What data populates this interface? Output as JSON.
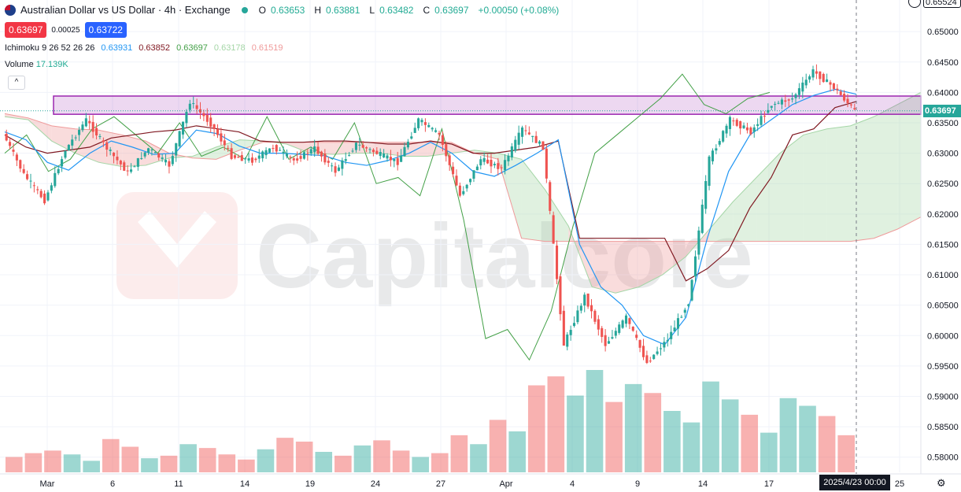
{
  "header": {
    "title": "Australian Dollar vs US Dollar · 4h · Exchange",
    "ohlc": [
      {
        "label": "O",
        "value": "0.63653"
      },
      {
        "label": "H",
        "value": "0.63881"
      },
      {
        "label": "L",
        "value": "0.63482"
      },
      {
        "label": "C",
        "value": "0.63697"
      }
    ],
    "change": "+0.00050 (+0.08%)"
  },
  "quote": {
    "sell": "0.63697",
    "spread": "0.00025",
    "buy": "0.63722"
  },
  "indicators": {
    "ichimoku": {
      "name": "Ichimoku 9 26 52 26 26",
      "values": [
        {
          "value": "0.63931",
          "color": "#2196f3"
        },
        {
          "value": "0.63852",
          "color": "#801922"
        },
        {
          "value": "0.63697",
          "color": "#43a047"
        },
        {
          "value": "0.63178",
          "color": "#a5d6a7"
        },
        {
          "value": "0.61519",
          "color": "#ef9a9a"
        }
      ]
    },
    "volume": {
      "name": "Volume",
      "value": "17.139K",
      "color": "#22ab94"
    }
  },
  "collapse_label": "^",
  "watermark": "Capitalcore",
  "price_axis": {
    "top_label": "0.65524",
    "current": "0.63697",
    "current_color": "#26a69a",
    "ticks": [
      "0.65000",
      "0.64500",
      "0.64000",
      "0.63500",
      "0.63000",
      "0.62500",
      "0.62000",
      "0.61500",
      "0.61000",
      "0.60500",
      "0.60000",
      "0.59500",
      "0.59000",
      "0.58500",
      "0.58000"
    ]
  },
  "time_axis": {
    "labels": [
      "Mar",
      "6",
      "11",
      "14",
      "19",
      "24",
      "27",
      "Apr",
      "4",
      "9",
      "14",
      "17",
      "25"
    ],
    "crosshair_label": "2025/4/23  00:00"
  },
  "chart_data": {
    "type": "candlestick",
    "symbol": "Australian Dollar vs US Dollar",
    "timeframe": "4h",
    "ylim": [
      0.5775,
      0.6552
    ],
    "resistance_zone": {
      "low": 0.6364,
      "high": 0.6394,
      "color": "#9c27b0"
    },
    "colors": {
      "up": "#26a69a",
      "down": "#ef5350",
      "tenkan": "#2196f3",
      "kijun": "#801922",
      "chikou": "#43a047",
      "cloud_up": "#a5d6a7",
      "cloud_down": "#ef9a9a"
    },
    "segments": [
      [
        0.6332,
        0.6265
      ],
      [
        0.6265,
        0.6222
      ],
      [
        0.6222,
        0.6305
      ],
      [
        0.6305,
        0.6355
      ],
      [
        0.6355,
        0.6308
      ],
      [
        0.6308,
        0.6268
      ],
      [
        0.6268,
        0.6308
      ],
      [
        0.6308,
        0.628
      ],
      [
        0.628,
        0.6385
      ],
      [
        0.6385,
        0.6348
      ],
      [
        0.6348,
        0.6295
      ],
      [
        0.6295,
        0.6288
      ],
      [
        0.6288,
        0.631
      ],
      [
        0.631,
        0.6288
      ],
      [
        0.6288,
        0.6308
      ],
      [
        0.6308,
        0.627
      ],
      [
        0.627,
        0.6315
      ],
      [
        0.6315,
        0.63
      ],
      [
        0.63,
        0.6285
      ],
      [
        0.6285,
        0.6355
      ],
      [
        0.6355,
        0.633
      ],
      [
        0.633,
        0.623
      ],
      [
        0.623,
        0.629
      ],
      [
        0.629,
        0.6275
      ],
      [
        0.6275,
        0.634
      ],
      [
        0.634,
        0.631
      ],
      [
        0.631,
        0.5985
      ],
      [
        0.5985,
        0.6065
      ],
      [
        0.6065,
        0.5985
      ],
      [
        0.5985,
        0.603
      ],
      [
        0.603,
        0.5955
      ],
      [
        0.5955,
        0.5995
      ],
      [
        0.5995,
        0.6055
      ],
      [
        0.6055,
        0.629
      ],
      [
        0.629,
        0.6355
      ],
      [
        0.6355,
        0.6335
      ],
      [
        0.6335,
        0.638
      ],
      [
        0.638,
        0.639
      ],
      [
        0.639,
        0.6435
      ],
      [
        0.6435,
        0.6408
      ],
      [
        0.6408,
        0.637
      ]
    ],
    "tenkan": [
      0.6335,
      0.6322,
      0.6285,
      0.6272,
      0.63,
      0.632,
      0.631,
      0.6298,
      0.63,
      0.6338,
      0.6332,
      0.6312,
      0.63,
      0.63,
      0.6298,
      0.6296,
      0.6285,
      0.628,
      0.6288,
      0.63,
      0.6318,
      0.63,
      0.627,
      0.6262,
      0.628,
      0.63,
      0.6322,
      0.615,
      0.608,
      0.605,
      0.6,
      0.5985,
      0.603,
      0.616,
      0.627,
      0.633,
      0.6355,
      0.638,
      0.6395,
      0.6405,
      0.6397
    ],
    "kijun": [
      0.633,
      0.631,
      0.63,
      0.6305,
      0.631,
      0.6325,
      0.633,
      0.6335,
      0.6338,
      0.6345,
      0.634,
      0.6335,
      0.632,
      0.6318,
      0.6318,
      0.632,
      0.632,
      0.6318,
      0.6315,
      0.6315,
      0.632,
      0.6315,
      0.63,
      0.63,
      0.6305,
      0.631,
      0.632,
      0.616,
      0.616,
      0.616,
      0.616,
      0.616,
      0.609,
      0.611,
      0.614,
      0.621,
      0.626,
      0.633,
      0.634,
      0.6375,
      0.6385
    ],
    "chikou": [
      0.63,
      0.633,
      0.627,
      0.629,
      0.634,
      0.636,
      0.633,
      0.63,
      0.635,
      0.6295,
      0.631,
      0.629,
      0.636,
      0.629,
      0.631,
      0.629,
      0.635,
      0.625,
      0.626,
      0.623,
      0.634,
      0.619,
      0.5995,
      0.601,
      0.596,
      0.604,
      0.618,
      0.63,
      0.633,
      0.636,
      0.639,
      0.643,
      0.638,
      0.6365,
      0.639,
      0.64
    ],
    "cloud": {
      "span_a": [
        0.636,
        0.6355,
        0.632,
        0.63,
        0.6285,
        0.6278,
        0.628,
        0.6292,
        0.6295,
        0.631,
        0.6322,
        0.632,
        0.6315,
        0.63,
        0.6298,
        0.63,
        0.63,
        0.6295,
        0.6295,
        0.63,
        0.6305,
        0.63,
        0.629,
        0.624,
        0.618,
        0.608,
        0.607,
        0.608,
        0.61,
        0.613,
        0.6175,
        0.622,
        0.626,
        0.63,
        0.633,
        0.634,
        0.6345,
        0.636,
        0.638,
        0.64
      ],
      "span_b": [
        0.6365,
        0.6358,
        0.6345,
        0.634,
        0.6338,
        0.633,
        0.632,
        0.63,
        0.6292,
        0.629,
        0.6305,
        0.6318,
        0.6318,
        0.6318,
        0.6318,
        0.6318,
        0.6318,
        0.6318,
        0.6318,
        0.6318,
        0.63,
        0.629,
        0.616,
        0.6155,
        0.6155,
        0.6155,
        0.6155,
        0.6155,
        0.6155,
        0.6155,
        0.6155,
        0.6155,
        0.6155,
        0.6155,
        0.6155,
        0.6155,
        0.6155,
        0.616,
        0.6175,
        0.6195
      ]
    },
    "volume_bars": [
      12,
      15,
      17,
      14,
      9,
      26,
      20,
      11,
      13,
      22,
      19,
      14,
      10,
      18,
      27,
      24,
      16,
      13,
      21,
      25,
      17,
      12,
      15,
      29,
      22,
      41,
      32,
      68,
      75,
      60,
      80,
      55,
      69,
      62,
      48,
      39,
      71,
      57,
      45,
      31,
      58,
      52,
      44,
      29
    ]
  }
}
